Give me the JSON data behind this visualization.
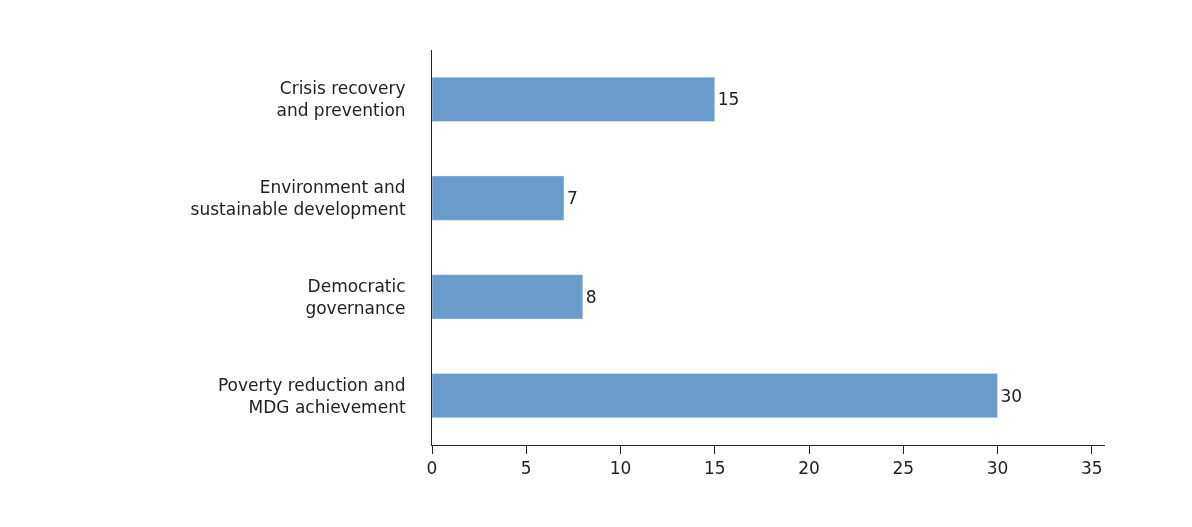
{
  "chart_data": {
    "type": "bar",
    "orientation": "horizontal",
    "categories": [
      "Crisis recovery\nand prevention",
      "Environment and\nsustainable development",
      "Democratic\ngovernance",
      "Poverty reduction and\nMDG achievement"
    ],
    "values": [
      15,
      7,
      8,
      30
    ],
    "color": "#6a9bcb",
    "data_labels": true,
    "xlim": [
      0,
      35.7
    ],
    "xticks": [
      0,
      5,
      10,
      15,
      20,
      25,
      30,
      35
    ]
  }
}
